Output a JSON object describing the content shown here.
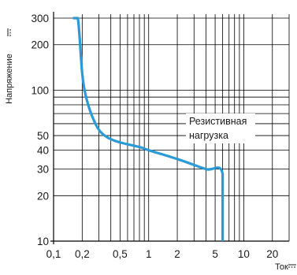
{
  "chart_data": {
    "type": "line",
    "xlabel": "Ток",
    "ylabel": "Напряжение",
    "x_scale": "log",
    "y_scale": "log",
    "xlim": [
      0.1,
      30
    ],
    "ylim": [
      10,
      300
    ],
    "x_ticks": [
      0.1,
      0.2,
      0.5,
      1,
      2,
      5,
      10,
      20
    ],
    "x_tick_labels": [
      "0,1",
      "0,2",
      "0,5",
      "1",
      "2",
      "5",
      "10",
      "20"
    ],
    "y_ticks": [
      10,
      20,
      30,
      40,
      50,
      100,
      200,
      300
    ],
    "y_tick_labels": [
      "10",
      "20",
      "30",
      "40",
      "50",
      "100",
      "200",
      "300"
    ],
    "grid": true,
    "annotation": {
      "lines": [
        "Резистивная",
        "нагрузка"
      ]
    },
    "series": [
      {
        "color": "#2a9bd6",
        "x": [
          0.16,
          0.18,
          0.2,
          0.22,
          0.26,
          0.32,
          0.45,
          0.8,
          1.0,
          2.0,
          4.0,
          6.0,
          6.0
        ],
        "y": [
          300,
          300,
          130,
          90,
          65,
          52,
          46,
          42,
          40,
          35,
          30,
          28,
          10
        ]
      }
    ],
    "line_color": "#000000"
  }
}
